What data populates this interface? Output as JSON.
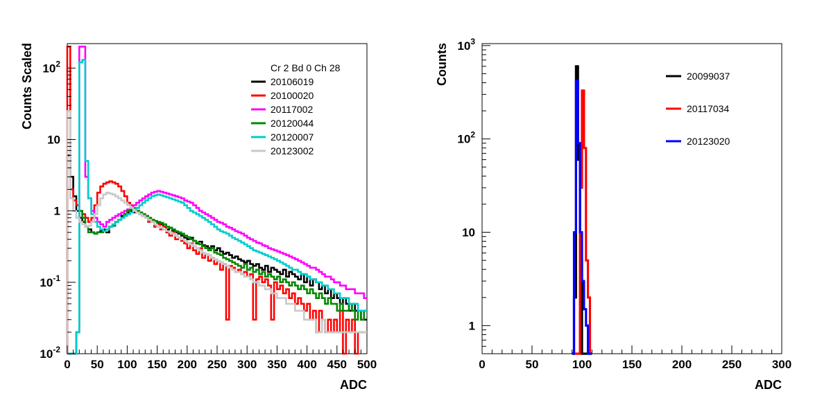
{
  "chart_data": [
    {
      "type": "line",
      "subtype": "step-histogram",
      "title": "",
      "xlabel": "ADC",
      "ylabel": "Counts Scaled",
      "xlim": [
        0,
        500
      ],
      "ylim": [
        0.01,
        220
      ],
      "yscale": "log",
      "grid": false,
      "legend_placement": "top-right",
      "legend_header": "Cr 2 Bd 0 Ch 28",
      "x_ticks": [
        0,
        50,
        100,
        150,
        200,
        250,
        300,
        350,
        400,
        450,
        500
      ],
      "y_tick_labels": [
        {
          "value": 0.01,
          "base": "10",
          "exp": "-2"
        },
        {
          "value": 0.1,
          "base": "10",
          "exp": "-1"
        },
        {
          "value": 1,
          "base": "1",
          "exp": ""
        },
        {
          "value": 10,
          "base": "10",
          "exp": ""
        },
        {
          "value": 100,
          "base": "10",
          "exp": "2"
        }
      ],
      "x_bin_edges": [
        0,
        5,
        10,
        15,
        20,
        25,
        30,
        35,
        40,
        45,
        50,
        55,
        60,
        65,
        70,
        75,
        80,
        85,
        90,
        95,
        100,
        105,
        110,
        115,
        120,
        125,
        130,
        135,
        140,
        145,
        150,
        155,
        160,
        165,
        170,
        175,
        180,
        185,
        190,
        195,
        200,
        205,
        210,
        215,
        220,
        225,
        230,
        235,
        240,
        245,
        250,
        255,
        260,
        265,
        270,
        275,
        280,
        285,
        290,
        295,
        300,
        305,
        310,
        315,
        320,
        325,
        330,
        335,
        340,
        345,
        350,
        355,
        360,
        365,
        370,
        375,
        380,
        385,
        390,
        395,
        400,
        405,
        410,
        415,
        420,
        425,
        430,
        435,
        440,
        445,
        450,
        455,
        460,
        465,
        470,
        475,
        480,
        485,
        490,
        495,
        500
      ],
      "series": [
        {
          "name": "20106019",
          "color": "#000000",
          "values": [
            6,
            3,
            1.6,
            1,
            0.8,
            0.7,
            0.6,
            0.55,
            0.5,
            0.48,
            0.5,
            0.52,
            0.55,
            0.5,
            0.6,
            0.62,
            0.7,
            0.75,
            0.85,
            0.9,
            0.95,
            1.0,
            0.95,
            1.0,
            0.9,
            0.85,
            0.8,
            0.75,
            0.7,
            0.72,
            0.68,
            0.65,
            0.6,
            0.55,
            0.58,
            0.52,
            0.5,
            0.48,
            0.45,
            0.42,
            0.4,
            0.42,
            0.38,
            0.35,
            0.37,
            0.33,
            0.32,
            0.3,
            0.32,
            0.28,
            0.3,
            0.27,
            0.25,
            0.26,
            0.24,
            0.22,
            0.23,
            0.21,
            0.2,
            0.19,
            0.2,
            0.18,
            0.17,
            0.18,
            0.16,
            0.15,
            0.17,
            0.14,
            0.16,
            0.15,
            0.14,
            0.13,
            0.15,
            0.12,
            0.14,
            0.13,
            0.12,
            0.11,
            0.13,
            0.1,
            0.12,
            0.09,
            0.11,
            0.1,
            0.08,
            0.09,
            0.07,
            0.08,
            0.06,
            0.07,
            0.06,
            0.05,
            0.06,
            0.05,
            0.04,
            0.05,
            0.04,
            0.04,
            0.03,
            0.03
          ]
        },
        {
          "name": "20100020",
          "color": "#ff0000",
          "values": [
            200,
            2,
            1.4,
            1.2,
            1,
            0.9,
            0.8,
            0.7,
            0.8,
            1.2,
            1.8,
            2.2,
            2.4,
            2.5,
            2.6,
            2.5,
            2.4,
            2.2,
            1.9,
            1.6,
            1.3,
            1.2,
            1.1,
            1.0,
            0.95,
            0.9,
            0.85,
            0.7,
            0.75,
            0.6,
            0.65,
            0.55,
            0.6,
            0.5,
            0.45,
            0.5,
            0.4,
            0.42,
            0.38,
            0.35,
            0.3,
            0.35,
            0.28,
            0.25,
            0.3,
            0.22,
            0.25,
            0.2,
            0.22,
            0.18,
            0.2,
            0.15,
            0.18,
            0.03,
            0.17,
            0.16,
            0.14,
            0.15,
            0.13,
            0.14,
            0.12,
            0.13,
            0.03,
            0.11,
            0.12,
            0.1,
            0.11,
            0.09,
            0.03,
            0.1,
            0.08,
            0.09,
            0.07,
            0.08,
            0.06,
            0.07,
            0.05,
            0.06,
            0.05,
            0.04,
            0.05,
            0.03,
            0.04,
            0.02,
            0.04,
            0.03,
            0.02,
            0.03,
            0.02,
            0.03,
            0.02,
            0.04,
            0.01,
            0.03,
            0.02,
            0.03,
            0.01,
            0.02,
            0.02,
            0.02
          ]
        },
        {
          "name": "20117002",
          "color": "#ff00ff",
          "values": [
            0.01,
            0.01,
            0.01,
            0.02,
            200,
            200,
            3,
            1.5,
            1.0,
            0.8,
            0.7,
            0.65,
            0.6,
            0.7,
            0.75,
            0.8,
            0.85,
            0.9,
            0.95,
            1.0,
            1.05,
            1.1,
            1.2,
            1.3,
            1.4,
            1.5,
            1.6,
            1.7,
            1.8,
            1.85,
            1.9,
            1.85,
            1.8,
            1.75,
            1.7,
            1.65,
            1.6,
            1.55,
            1.5,
            1.4,
            1.35,
            1.3,
            1.2,
            1.1,
            1.0,
            0.95,
            0.9,
            0.85,
            0.8,
            0.75,
            0.7,
            0.68,
            0.65,
            0.6,
            0.58,
            0.55,
            0.52,
            0.5,
            0.48,
            0.45,
            0.42,
            0.4,
            0.38,
            0.36,
            0.35,
            0.33,
            0.32,
            0.3,
            0.29,
            0.28,
            0.27,
            0.26,
            0.25,
            0.24,
            0.23,
            0.22,
            0.21,
            0.2,
            0.19,
            0.18,
            0.17,
            0.16,
            0.16,
            0.15,
            0.14,
            0.13,
            0.12,
            0.12,
            0.11,
            0.1,
            0.1,
            0.09,
            0.09,
            0.08,
            0.08,
            0.08,
            0.07,
            0.07,
            0.07,
            0.06
          ]
        },
        {
          "name": "20120044",
          "color": "#008800",
          "values": [
            0.01,
            0.01,
            0.01,
            0.02,
            1,
            0.8,
            0.6,
            0.5,
            0.5,
            0.48,
            0.5,
            0.5,
            0.52,
            0.55,
            0.6,
            0.62,
            0.7,
            0.75,
            0.8,
            0.9,
            1.0,
            1.05,
            1.1,
            1.0,
            0.95,
            0.9,
            0.85,
            0.8,
            0.75,
            0.72,
            0.7,
            0.68,
            0.65,
            0.6,
            0.58,
            0.55,
            0.52,
            0.5,
            0.48,
            0.45,
            0.43,
            0.4,
            0.38,
            0.36,
            0.34,
            0.32,
            0.3,
            0.28,
            0.3,
            0.26,
            0.25,
            0.24,
            0.22,
            0.21,
            0.2,
            0.19,
            0.18,
            0.17,
            0.16,
            0.18,
            0.15,
            0.16,
            0.14,
            0.15,
            0.13,
            0.14,
            0.12,
            0.13,
            0.12,
            0.11,
            0.12,
            0.1,
            0.11,
            0.1,
            0.09,
            0.1,
            0.09,
            0.08,
            0.09,
            0.08,
            0.07,
            0.08,
            0.07,
            0.06,
            0.07,
            0.06,
            0.05,
            0.06,
            0.05,
            0.05,
            0.04,
            0.05,
            0.04,
            0.04,
            0.05,
            0.04,
            0.03,
            0.04,
            0.03,
            0.04
          ]
        },
        {
          "name": "20120007",
          "color": "#00cccc",
          "values": [
            0.01,
            0.01,
            0.01,
            0.02,
            120,
            130,
            5,
            1.5,
            0.9,
            0.7,
            0.6,
            0.55,
            0.52,
            0.55,
            0.6,
            0.65,
            0.7,
            0.75,
            0.8,
            0.85,
            0.9,
            0.95,
            1.0,
            1.1,
            1.2,
            1.3,
            1.4,
            1.5,
            1.6,
            1.65,
            1.7,
            1.65,
            1.6,
            1.55,
            1.5,
            1.45,
            1.4,
            1.35,
            1.3,
            1.2,
            1.1,
            1.0,
            0.95,
            0.9,
            0.85,
            0.8,
            0.75,
            0.7,
            0.65,
            0.6,
            0.55,
            0.52,
            0.5,
            0.48,
            0.45,
            0.42,
            0.4,
            0.38,
            0.36,
            0.34,
            0.32,
            0.3,
            0.28,
            0.27,
            0.26,
            0.25,
            0.24,
            0.23,
            0.22,
            0.21,
            0.2,
            0.19,
            0.18,
            0.17,
            0.16,
            0.15,
            0.15,
            0.14,
            0.13,
            0.13,
            0.12,
            0.11,
            0.11,
            0.1,
            0.1,
            0.09,
            0.09,
            0.08,
            0.08,
            0.07,
            0.07,
            0.06,
            0.06,
            0.06,
            0.05,
            0.05,
            0.05,
            0.04,
            0.04,
            0.04
          ]
        },
        {
          "name": "20123002",
          "color": "#c8c8c8",
          "values": [
            25,
            1.5,
            1.0,
            0.8,
            0.7,
            0.65,
            0.6,
            0.62,
            0.7,
            0.9,
            1.2,
            1.5,
            1.7,
            1.8,
            1.75,
            1.7,
            1.6,
            1.5,
            1.4,
            1.3,
            1.2,
            1.1,
            1.0,
            0.95,
            0.9,
            0.85,
            0.8,
            0.75,
            0.7,
            0.65,
            0.6,
            0.58,
            0.55,
            0.52,
            0.5,
            0.48,
            0.45,
            0.42,
            0.4,
            0.38,
            0.36,
            0.34,
            0.32,
            0.3,
            0.28,
            0.26,
            0.25,
            0.24,
            0.22,
            0.21,
            0.2,
            0.19,
            0.18,
            0.17,
            0.16,
            0.15,
            0.14,
            0.14,
            0.13,
            0.12,
            0.12,
            0.11,
            0.1,
            0.1,
            0.09,
            0.09,
            0.08,
            0.08,
            0.07,
            0.07,
            0.06,
            0.06,
            0.06,
            0.05,
            0.05,
            0.05,
            0.04,
            0.04,
            0.04,
            0.03,
            0.03,
            0.03,
            0.03,
            0.02,
            0.02,
            0.03,
            0.02,
            0.02,
            0.02,
            0.02,
            0.02,
            0.02,
            0.02,
            0.02,
            0.02,
            0.02,
            0.02,
            0.02,
            0.02,
            0.02
          ]
        }
      ]
    },
    {
      "type": "line",
      "subtype": "step-histogram",
      "title": "",
      "xlabel": "ADC",
      "ylabel": "Counts",
      "xlim": [
        0,
        300
      ],
      "ylim": [
        0.5,
        1050
      ],
      "yscale": "log",
      "grid": false,
      "legend_placement": "top-right",
      "x_ticks": [
        0,
        50,
        100,
        150,
        200,
        250,
        300
      ],
      "y_tick_labels": [
        {
          "value": 1,
          "base": "1",
          "exp": ""
        },
        {
          "value": 10,
          "base": "10",
          "exp": ""
        },
        {
          "value": 100,
          "base": "10",
          "exp": "2"
        },
        {
          "value": 1000,
          "base": "10",
          "exp": "3"
        }
      ],
      "x_bin_edges": [
        90,
        92,
        94,
        96,
        98,
        100,
        102,
        104,
        106,
        108,
        110
      ],
      "series": [
        {
          "name": "20099037",
          "color": "#000000",
          "values": [
            0.5,
            2,
            600,
            60,
            5,
            0.5,
            0.5,
            0.5,
            0.5,
            0.5
          ]
        },
        {
          "name": "20117034",
          "color": "#ff0000",
          "values": [
            0.5,
            0.5,
            0.5,
            0.5,
            30,
            330,
            80,
            5,
            2,
            0.5
          ]
        },
        {
          "name": "20123020",
          "color": "#0000ff",
          "values": [
            0.5,
            10,
            420,
            90,
            10,
            3,
            1.5,
            1,
            0.5,
            0.5
          ]
        }
      ]
    }
  ]
}
